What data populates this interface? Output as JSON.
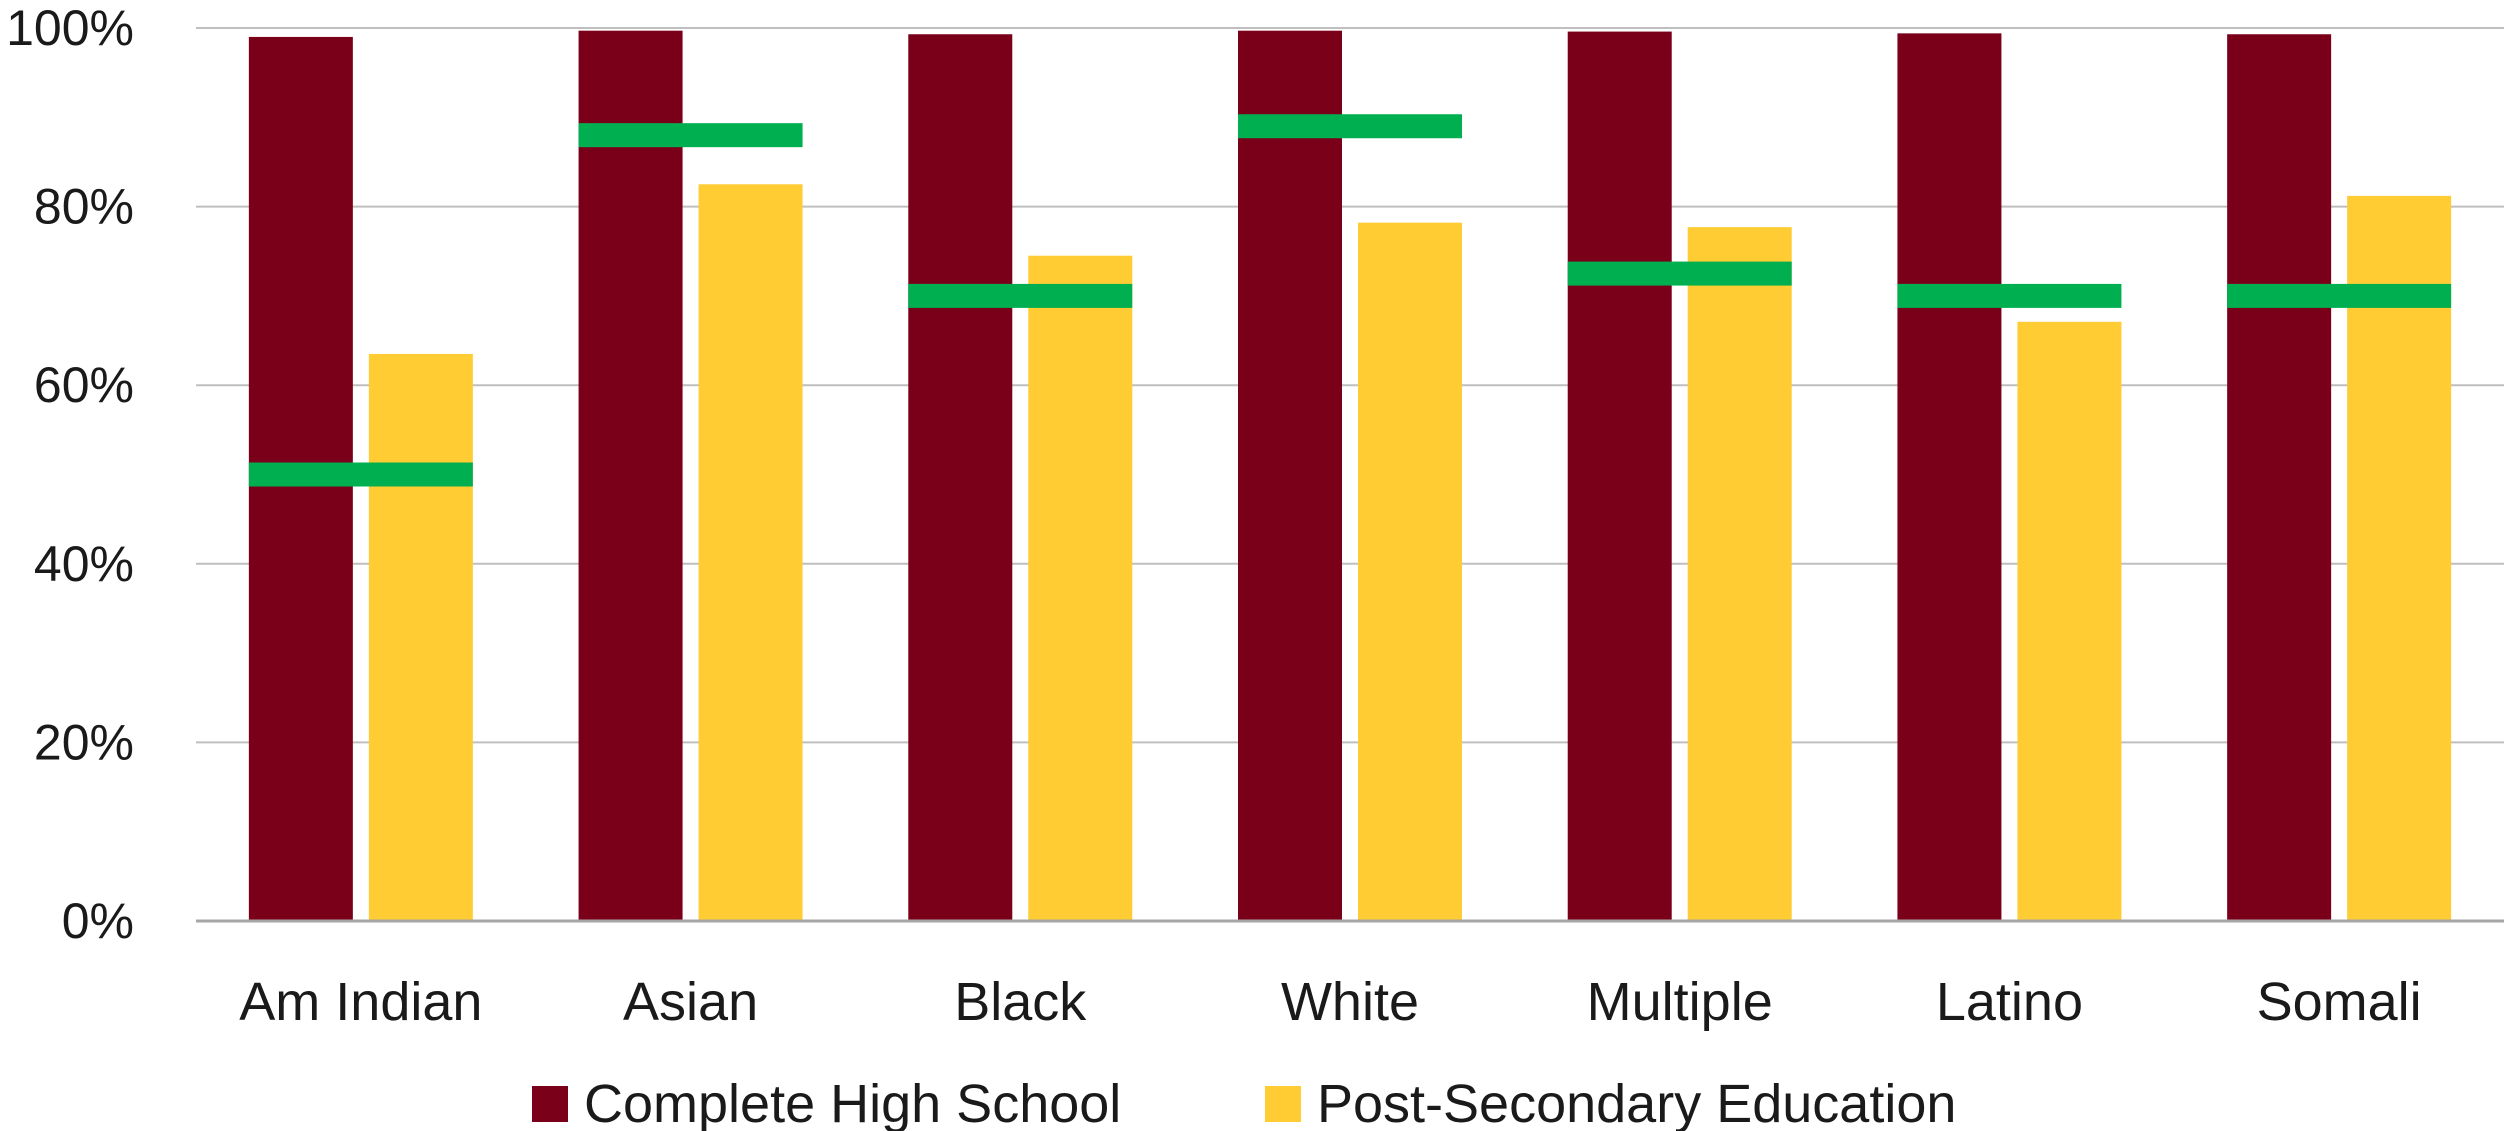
{
  "chart_data": {
    "type": "bar",
    "title": "",
    "xlabel": "",
    "ylabel": "",
    "ylim": [
      0,
      100
    ],
    "y_ticks": [
      0,
      20,
      40,
      60,
      80,
      100
    ],
    "y_tick_labels": [
      "0%",
      "20%",
      "40%",
      "60%",
      "80%",
      "100%"
    ],
    "grid": true,
    "legend_position": "bottom",
    "categories": [
      "Am Indian",
      "Asian",
      "Black",
      "White",
      "Multiple",
      "Latino",
      "Somali"
    ],
    "series": [
      {
        "name": "Complete High School",
        "color": "#7a001a",
        "values": [
          99,
          99.7,
          99.3,
          99.7,
          99.6,
          99.4,
          99.3
        ]
      },
      {
        "name": "Post-Secondary Education",
        "color": "#ffcc33",
        "values": [
          63.5,
          82.5,
          74.5,
          78.2,
          77.7,
          67.1,
          81.2
        ]
      }
    ],
    "markers": {
      "color": "#00b050",
      "values": [
        50,
        88,
        70,
        89,
        72.5,
        70,
        70
      ]
    }
  }
}
